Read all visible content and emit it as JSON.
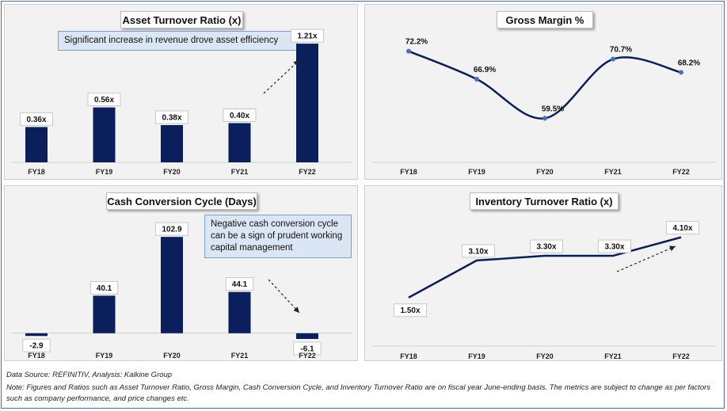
{
  "colors": {
    "bar": "#0b1f5c",
    "line": "#0b1f5c",
    "marker": "#4472c4",
    "panel": "#f2f2f2",
    "callout": "#dae6f3"
  },
  "chart_data": [
    {
      "id": "asset",
      "type": "bar",
      "title": "Asset Turnover Ratio (x)",
      "categories": [
        "FY18",
        "FY19",
        "FY20",
        "FY21",
        "FY22"
      ],
      "values": [
        0.36,
        0.56,
        0.38,
        0.4,
        1.21
      ],
      "labels": [
        "0.36x",
        "0.56x",
        "0.38x",
        "0.40x",
        "1.21x"
      ],
      "ylim": [
        0,
        1.3
      ],
      "annotation": "Significant increase in revenue drove asset efficiency",
      "trend_arrow": "rising"
    },
    {
      "id": "gross",
      "type": "line",
      "title": "Gross Margin %",
      "categories": [
        "FY18",
        "FY19",
        "FY20",
        "FY21",
        "FY22"
      ],
      "values": [
        72.2,
        66.9,
        59.5,
        70.7,
        68.2
      ],
      "labels": [
        "72.2%",
        "66.9%",
        "59.5%",
        "70.7%",
        "68.2%"
      ],
      "ylim": [
        57,
        75
      ],
      "line_style": "smooth"
    },
    {
      "id": "ccc",
      "type": "bar",
      "title": "Cash Conversion Cycle (Days)",
      "categories": [
        "FY18",
        "FY19",
        "FY20",
        "FY21",
        "FY22"
      ],
      "values": [
        -2.9,
        40.1,
        102.9,
        44.1,
        -6.1
      ],
      "labels": [
        "-2.9",
        "40.1",
        "102.9",
        "44.1",
        "-6.1"
      ],
      "ylim": [
        -12,
        125
      ],
      "annotation": "Negative cash conversion cycle can be a sign of prudent working capital management",
      "trend_arrow": "falling"
    },
    {
      "id": "inv",
      "type": "line",
      "title": "Inventory Turnover Ratio (x)",
      "categories": [
        "FY18",
        "FY19",
        "FY20",
        "FY21",
        "FY22"
      ],
      "values": [
        1.5,
        3.1,
        3.3,
        3.3,
        4.1
      ],
      "labels": [
        "1.50x",
        "3.10x",
        "3.30x",
        "3.30x",
        "4.10x"
      ],
      "ylim": [
        0.5,
        4.6
      ],
      "line_style": "straight",
      "trend_arrow": "rising"
    }
  ],
  "footer": {
    "source": "Data Source: REFINITIV, Analysis: Kalkine Group",
    "note": "Note: Figures and Ratios such as Asset Turnover Ratio, Gross Margin, Cash Conversion Cycle, and Inventory Turnover Ratio are on fiscal year June-ending basis. The metrics are subject to change as per factors such as company performance, and price changes etc."
  }
}
